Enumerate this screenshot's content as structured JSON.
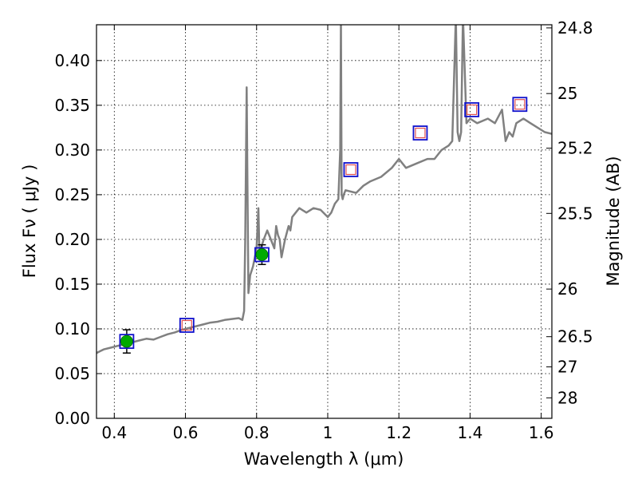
{
  "chart_data": {
    "type": "line",
    "xlabel": "Wavelength  λ (μm)",
    "ylabel": "Flux  Fν  ( μJy )",
    "y2label": "Magnitude (AB)",
    "xlim": [
      0.35,
      1.63
    ],
    "ylim": [
      0.0,
      0.44
    ],
    "grid": true,
    "x_ticks": [
      0.4,
      0.6,
      0.8,
      1.0,
      1.2,
      1.4,
      1.6
    ],
    "x_tick_labels": [
      "0.4",
      "0.6",
      "0.8",
      "1",
      "1.2",
      "1.4",
      "1.6"
    ],
    "y_ticks": [
      0.0,
      0.05,
      0.1,
      0.15,
      0.2,
      0.25,
      0.3,
      0.35,
      0.4
    ],
    "y_tick_labels": [
      "0.00",
      "0.05",
      "0.10",
      "0.15",
      "0.20",
      "0.25",
      "0.30",
      "0.35",
      "0.40"
    ],
    "y2_ticks": [
      {
        "flux": 0.0913,
        "label": "26.5"
      },
      {
        "flux": 0.0575,
        "label": "27"
      },
      {
        "flux": 0.0229,
        "label": "28"
      },
      {
        "flux": 0.1445,
        "label": "26"
      },
      {
        "flux": 0.2291,
        "label": "25.5"
      },
      {
        "flux": 0.302,
        "label": "25.2"
      },
      {
        "flux": 0.3631,
        "label": "25"
      },
      {
        "flux": 0.4365,
        "label": "24.8"
      }
    ],
    "spectrum": {
      "color": "#808080",
      "x": [
        0.35,
        0.37,
        0.39,
        0.41,
        0.43,
        0.45,
        0.47,
        0.49,
        0.51,
        0.53,
        0.55,
        0.57,
        0.59,
        0.61,
        0.63,
        0.65,
        0.67,
        0.69,
        0.71,
        0.73,
        0.75,
        0.76,
        0.765,
        0.768,
        0.772,
        0.774,
        0.777,
        0.782,
        0.79,
        0.8,
        0.805,
        0.808,
        0.812,
        0.82,
        0.83,
        0.84,
        0.85,
        0.855,
        0.86,
        0.865,
        0.87,
        0.88,
        0.89,
        0.895,
        0.9,
        0.91,
        0.92,
        0.94,
        0.96,
        0.98,
        1.0,
        1.01,
        1.02,
        1.03,
        1.035,
        1.037,
        1.039,
        1.042,
        1.045,
        1.05,
        1.08,
        1.1,
        1.12,
        1.15,
        1.18,
        1.2,
        1.22,
        1.25,
        1.28,
        1.3,
        1.32,
        1.34,
        1.35,
        1.36,
        1.365,
        1.37,
        1.375,
        1.38,
        1.39,
        1.4,
        1.42,
        1.45,
        1.47,
        1.49,
        1.5,
        1.51,
        1.52,
        1.53,
        1.55,
        1.57,
        1.59,
        1.61,
        1.63
      ],
      "y": [
        0.073,
        0.077,
        0.079,
        0.081,
        0.083,
        0.085,
        0.087,
        0.089,
        0.088,
        0.091,
        0.094,
        0.096,
        0.099,
        0.101,
        0.103,
        0.105,
        0.107,
        0.108,
        0.11,
        0.111,
        0.112,
        0.11,
        0.12,
        0.2,
        0.37,
        0.28,
        0.14,
        0.16,
        0.17,
        0.19,
        0.235,
        0.185,
        0.19,
        0.2,
        0.21,
        0.2,
        0.19,
        0.215,
        0.205,
        0.2,
        0.18,
        0.2,
        0.215,
        0.21,
        0.225,
        0.23,
        0.235,
        0.23,
        0.235,
        0.233,
        0.225,
        0.23,
        0.24,
        0.245,
        0.3,
        0.45,
        0.25,
        0.245,
        0.25,
        0.255,
        0.252,
        0.26,
        0.265,
        0.27,
        0.28,
        0.29,
        0.28,
        0.285,
        0.29,
        0.29,
        0.3,
        0.305,
        0.31,
        0.45,
        0.32,
        0.31,
        0.32,
        0.45,
        0.33,
        0.335,
        0.33,
        0.335,
        0.33,
        0.345,
        0.31,
        0.32,
        0.315,
        0.33,
        0.335,
        0.33,
        0.325,
        0.32,
        0.318
      ]
    },
    "series": [
      {
        "marker": "filled-circle",
        "color": "#00aa00",
        "x": [
          0.435,
          0.815
        ],
        "y": [
          0.086,
          0.183
        ],
        "yerr": [
          0.013,
          0.011
        ]
      },
      {
        "marker": "open-square",
        "color": "#1010cc",
        "x": [
          0.435,
          0.604,
          0.815,
          1.065,
          1.26,
          1.405,
          1.54
        ],
        "y": [
          0.086,
          0.104,
          0.183,
          0.278,
          0.319,
          0.345,
          0.351
        ]
      },
      {
        "marker": "small-open-square",
        "color": "#e05050",
        "x": [
          0.604,
          1.065,
          1.26,
          1.405,
          1.54
        ],
        "y": [
          0.104,
          0.278,
          0.319,
          0.345,
          0.351
        ]
      }
    ]
  }
}
